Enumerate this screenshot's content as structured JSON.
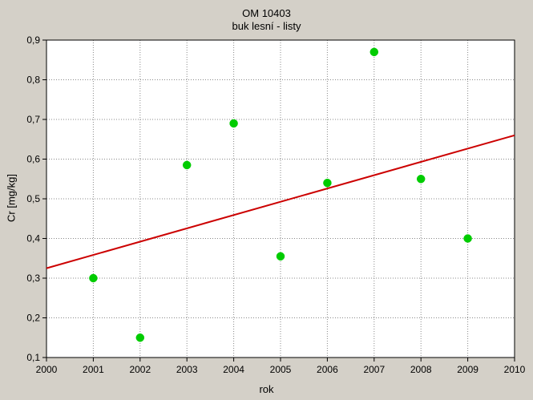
{
  "chart_data": {
    "type": "scatter",
    "title": "OM 10403",
    "subtitle": "buk lesní - listy",
    "xlabel": "rok",
    "ylabel": "Cr [mg/kg]",
    "xlim": [
      2000,
      2010
    ],
    "ylim": [
      0.1,
      0.9
    ],
    "xticks": [
      2000,
      2001,
      2002,
      2003,
      2004,
      2005,
      2006,
      2007,
      2008,
      2009,
      2010
    ],
    "yticks": [
      "0,1",
      "0,2",
      "0,3",
      "0,4",
      "0,5",
      "0,6",
      "0,7",
      "0,8",
      "0,9"
    ],
    "grid": true,
    "series": [
      {
        "x": [
          2001,
          2002,
          2003,
          2004,
          2005,
          2006,
          2007,
          2008,
          2009
        ],
        "y": [
          0.3,
          0.15,
          0.585,
          0.69,
          0.355,
          0.54,
          0.87,
          0.55,
          0.4
        ],
        "color": "#00cc00"
      }
    ],
    "trendline": {
      "x": [
        2000,
        2010
      ],
      "y": [
        0.325,
        0.66
      ],
      "color": "#cc0000"
    },
    "colors": {
      "plot_background": "#ffffff",
      "figure_background": "#d4d0c8"
    }
  }
}
